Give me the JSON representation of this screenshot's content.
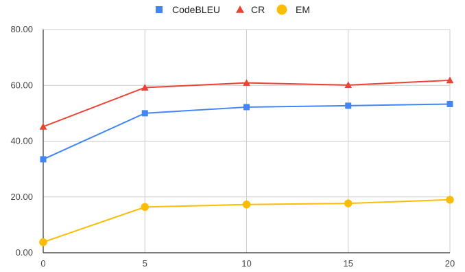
{
  "chart_data": {
    "type": "line",
    "x": [
      0,
      5,
      10,
      15,
      20
    ],
    "xticks": [
      "0",
      "5",
      "10",
      "15",
      "20"
    ],
    "yticks": [
      "0.00",
      "20.00",
      "40.00",
      "60.00",
      "80.00"
    ],
    "ylim": [
      0,
      80
    ],
    "xlim": [
      0,
      20
    ],
    "grid": true,
    "legend_position": "top",
    "series": [
      {
        "name": "CodeBLEU",
        "color": "#4285f4",
        "marker": "square",
        "values": [
          33.5,
          50.0,
          52.2,
          52.7,
          53.3
        ]
      },
      {
        "name": "CR",
        "color": "#ea4335",
        "marker": "triangle",
        "values": [
          45.2,
          59.2,
          60.9,
          60.1,
          61.8
        ]
      },
      {
        "name": "EM",
        "color": "#fbbc04",
        "marker": "circle",
        "values": [
          3.8,
          16.4,
          17.3,
          17.7,
          19.0
        ]
      }
    ]
  }
}
